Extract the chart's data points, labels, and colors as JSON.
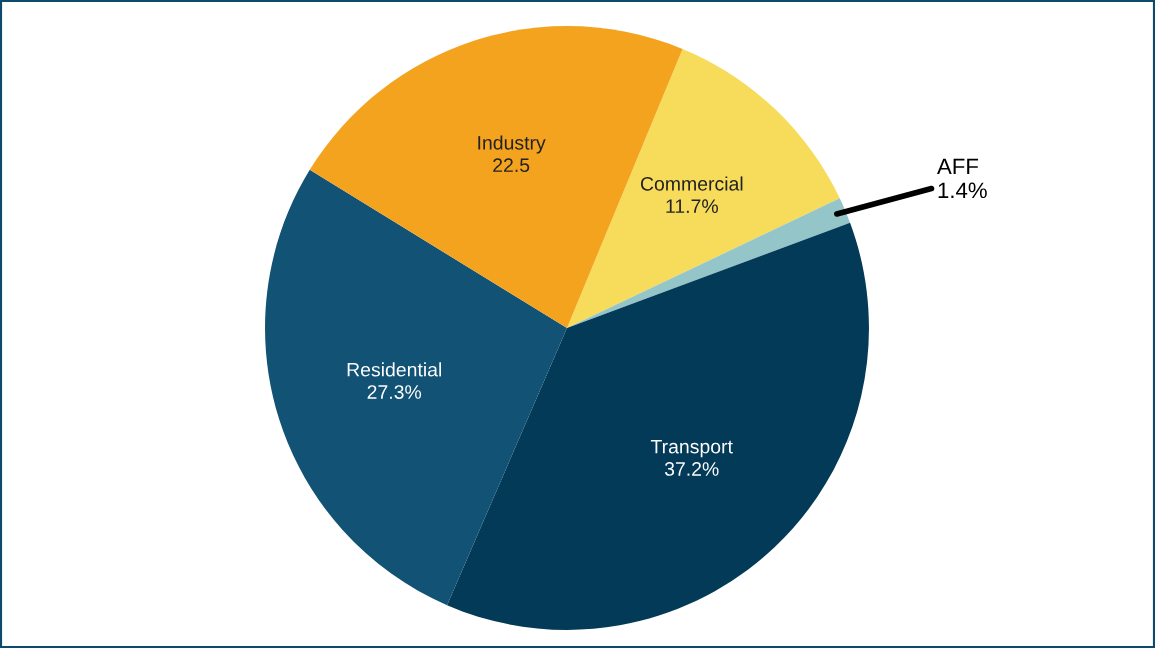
{
  "chart_data": {
    "type": "pie",
    "categories": [
      "Commercial",
      "AFF",
      "Transport",
      "Residential",
      "Industry"
    ],
    "values": [
      11.7,
      1.4,
      37.2,
      27.3,
      22.5
    ],
    "colors": [
      "#f6dc5a",
      "#94c5c8",
      "#033a57",
      "#125275",
      "#f4a31f"
    ],
    "data_labels": true,
    "value_labels": [
      "11.7%",
      "1.4%",
      "37.2%",
      "27.3%",
      "22.5"
    ]
  }
}
